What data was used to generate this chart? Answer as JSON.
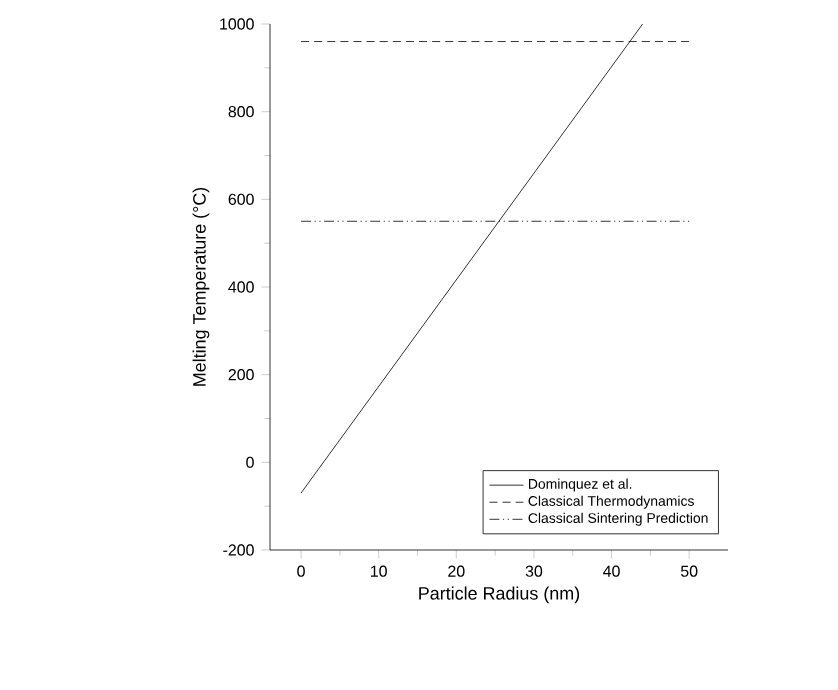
{
  "chart_data": {
    "type": "line",
    "xlabel": "Particle Radius (nm)",
    "ylabel": "Melting Temperature (°C)",
    "xlim": [
      -4,
      55
    ],
    "ylim": [
      -200,
      1000
    ],
    "xticks": [
      0,
      10,
      20,
      30,
      40,
      50
    ],
    "yticks": [
      -200,
      0,
      200,
      400,
      600,
      800,
      1000
    ],
    "legend": "bottom right",
    "grid": false,
    "series": [
      {
        "name": "Dominquez et al.",
        "color": "#000000",
        "line_style": "solid",
        "x": [
          0,
          44
        ],
        "values": [
          -70,
          1000
        ]
      },
      {
        "name": "Classical Thermodynamics",
        "color": "#000000",
        "line_style": "dashed",
        "x": [
          0,
          50
        ],
        "values": [
          960,
          960
        ]
      },
      {
        "name": "Classical Sintering Prediction",
        "color": "#000000",
        "line_style": "dashdotdot",
        "x": [
          0,
          50
        ],
        "values": [
          550,
          550
        ]
      }
    ]
  }
}
